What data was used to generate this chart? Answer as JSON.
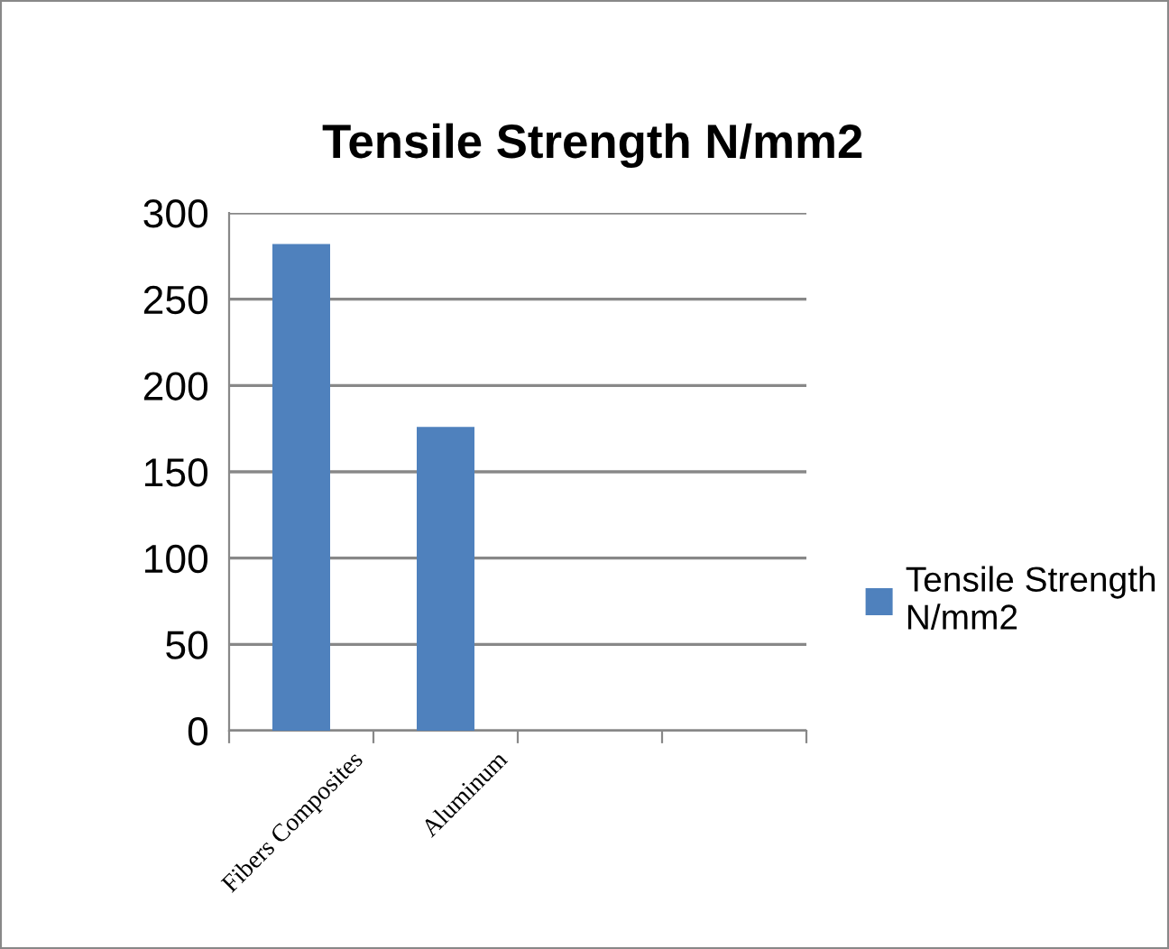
{
  "chart_data": {
    "type": "bar",
    "title": "Tensile Strength N/mm2",
    "categories": [
      "Fibers Composites",
      "Aluminum",
      null,
      null
    ],
    "series": [
      {
        "name": "Tensile Strength N/mm2",
        "color": "#4f81bd",
        "values": [
          282,
          176,
          null,
          null
        ]
      }
    ],
    "ylim": [
      0,
      300
    ],
    "yticks": [
      0,
      50,
      100,
      150,
      200,
      250,
      300
    ],
    "grid": "y",
    "legend": "right"
  }
}
